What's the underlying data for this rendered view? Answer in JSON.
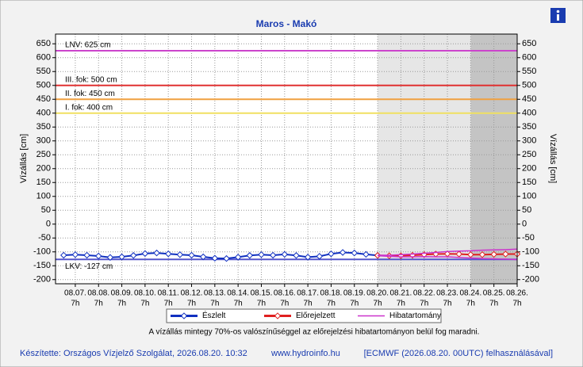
{
  "chart_data": {
    "type": "line",
    "title": "Maros - Makó",
    "y_label": "Vízállás [cm]",
    "y2_label": "Vízállás [cm]",
    "xlim": [
      -0.85,
      19
    ],
    "ylim": [
      -215,
      685
    ],
    "xticks": [
      {
        "value": 0,
        "label": "08.07.",
        "sublabel": "7h"
      },
      {
        "value": 1,
        "label": "08.08.",
        "sublabel": "7h"
      },
      {
        "value": 2,
        "label": "08.09.",
        "sublabel": "7h"
      },
      {
        "value": 3,
        "label": "08.10.",
        "sublabel": "7h"
      },
      {
        "value": 4,
        "label": "08.11.",
        "sublabel": "7h"
      },
      {
        "value": 5,
        "label": "08.12.",
        "sublabel": "7h"
      },
      {
        "value": 6,
        "label": "08.13.",
        "sublabel": "7h"
      },
      {
        "value": 7,
        "label": "08.14.",
        "sublabel": "7h"
      },
      {
        "value": 8,
        "label": "08.15.",
        "sublabel": "7h"
      },
      {
        "value": 9,
        "label": "08.16.",
        "sublabel": "7h"
      },
      {
        "value": 10,
        "label": "08.17.",
        "sublabel": "7h"
      },
      {
        "value": 11,
        "label": "08.18.",
        "sublabel": "7h"
      },
      {
        "value": 12,
        "label": "08.19.",
        "sublabel": "7h"
      },
      {
        "value": 13,
        "label": "08.20.",
        "sublabel": "7h"
      },
      {
        "value": 14,
        "label": "08.21.",
        "sublabel": "7h"
      },
      {
        "value": 15,
        "label": "08.22.",
        "sublabel": "7h"
      },
      {
        "value": 16,
        "label": "08.23.",
        "sublabel": "7h"
      },
      {
        "value": 17,
        "label": "08.24.",
        "sublabel": "7h"
      },
      {
        "value": 18,
        "label": "08.25.",
        "sublabel": "7h"
      },
      {
        "value": 19,
        "label": "08.26.",
        "sublabel": "7h"
      }
    ],
    "yticks": [
      -200,
      -150,
      -100,
      -50,
      0,
      50,
      100,
      150,
      200,
      250,
      300,
      350,
      400,
      450,
      500,
      550,
      600,
      650
    ],
    "grid": true,
    "shaded_regions": [
      {
        "from": 13,
        "to": 17,
        "color": "#e6e6e6"
      },
      {
        "from": 17,
        "to": 19,
        "color": "#c4c4c4"
      }
    ],
    "reference_lines": [
      {
        "label": "LNV: 625 cm",
        "value": 625,
        "color": "#cc44cc"
      },
      {
        "label": "III. fok: 500 cm",
        "value": 500,
        "color": "#e03030"
      },
      {
        "label": "II. fok: 450 cm",
        "value": 450,
        "color": "#f0a040"
      },
      {
        "label": "I. fok: 400 cm",
        "value": 400,
        "color": "#f0e060"
      },
      {
        "label": "LKV: -127 cm",
        "value": -127,
        "color": "#5555cc"
      }
    ],
    "series": [
      {
        "name": "Észlelt",
        "color": "#1030c0",
        "x": [
          -0.5,
          0,
          0.5,
          1,
          1.5,
          2,
          2.5,
          3,
          3.5,
          4,
          4.5,
          5,
          5.5,
          6,
          6.5,
          7,
          7.5,
          8,
          8.5,
          9,
          9.5,
          10,
          10.5,
          11,
          11.5,
          12,
          12.5,
          13
        ],
        "values": [
          -112,
          -110,
          -112,
          -115,
          -120,
          -118,
          -113,
          -106,
          -104,
          -107,
          -110,
          -112,
          -118,
          -123,
          -124,
          -119,
          -113,
          -110,
          -112,
          -109,
          -113,
          -119,
          -116,
          -107,
          -102,
          -104,
          -109,
          -113
        ]
      },
      {
        "name": "Előrejelzett",
        "color": "#e02020",
        "x": [
          13,
          13.5,
          14,
          14.5,
          15,
          15.5,
          16,
          16.5,
          17,
          17.5,
          18,
          18.5,
          19
        ],
        "values": [
          -113,
          -114,
          -114,
          -112,
          -110,
          -108,
          -107,
          -108,
          -110,
          -110,
          -109,
          -108,
          -108
        ]
      },
      {
        "name": "Hibatartomány",
        "color": "#cc33cc",
        "x": [
          13,
          13.5,
          14,
          14.5,
          15,
          15.5,
          16,
          16.5,
          17,
          17.5,
          18,
          18.5,
          19
        ],
        "upper": [
          -112,
          -112,
          -110,
          -108,
          -105,
          -102,
          -99,
          -97,
          -96,
          -94,
          -93,
          -92,
          -90
        ],
        "lower": [
          -114,
          -116,
          -118,
          -118,
          -117,
          -118,
          -118,
          -120,
          -122,
          -124,
          -125,
          -126,
          -128
        ]
      }
    ],
    "note": "A vízállás mintegy 70%-os valószínűséggel az előrejelzési hibatartományon belül fog maradni.",
    "footer": [
      "Készítette: Országos Vízjelző Szolgálat, 2026.08.20. 10:32",
      "www.hydroinfo.hu",
      "[ECMWF (2026.08.20. 00UTC) felhasználásával]"
    ]
  }
}
